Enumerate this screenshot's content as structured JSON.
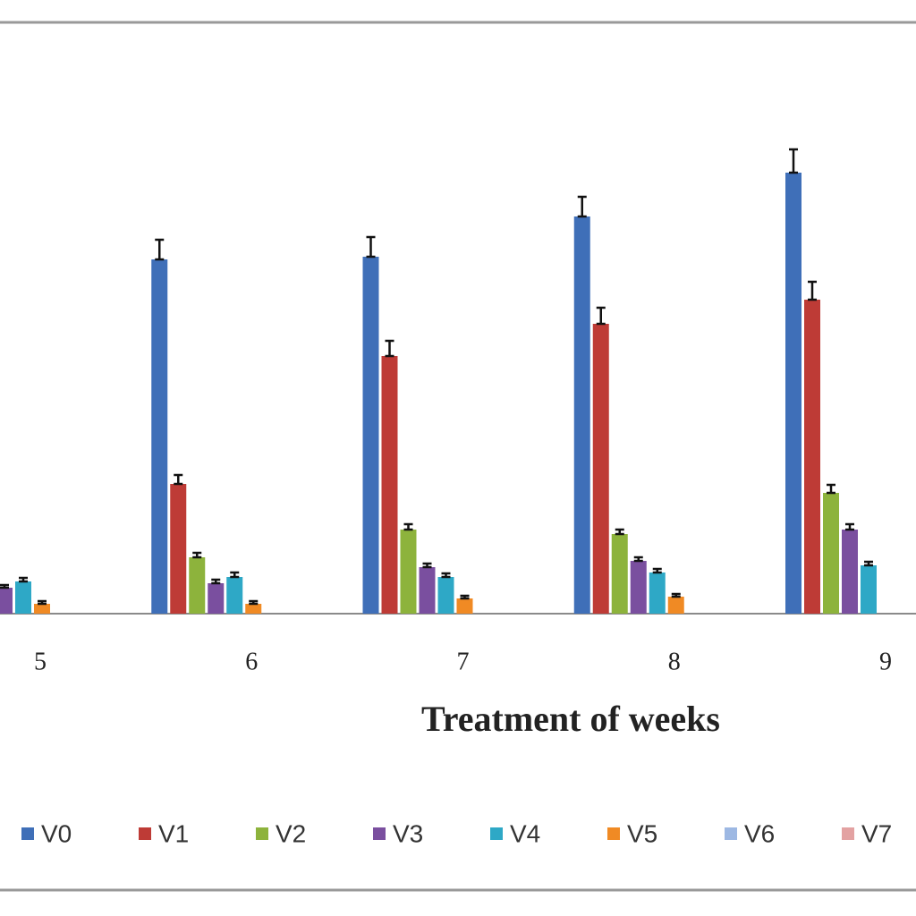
{
  "chart_data": {
    "type": "bar",
    "x_label": "Treatment of weeks",
    "categories": [
      "5",
      "6",
      "7",
      "8",
      "9"
    ],
    "ylim": [
      0,
      660
    ],
    "legend": "bottom",
    "series": [
      {
        "name": "V0",
        "color": "#3f6fb8",
        "values": [
          null,
          396,
          399,
          444,
          493
        ],
        "errors": [
          null,
          22,
          22,
          22,
          26
        ]
      },
      {
        "name": "V1",
        "color": "#be3b36",
        "values": [
          null,
          145,
          288,
          324,
          351
        ],
        "errors": [
          null,
          10,
          17,
          18,
          20
        ]
      },
      {
        "name": "V2",
        "color": "#8db33c",
        "values": [
          null,
          63,
          94,
          89,
          135
        ],
        "errors": [
          null,
          5,
          6,
          5,
          9
        ]
      },
      {
        "name": "V3",
        "color": "#7a4f9f",
        "values": [
          29,
          34,
          52,
          59,
          94
        ],
        "errors": [
          3,
          4,
          4,
          4,
          6
        ]
      },
      {
        "name": "V4",
        "color": "#2ea8c6",
        "values": [
          36,
          41,
          41,
          46,
          54
        ],
        "errors": [
          4,
          5,
          4,
          4,
          4
        ]
      },
      {
        "name": "V5",
        "color": "#f08a24",
        "values": [
          11,
          11,
          17,
          19,
          null
        ],
        "errors": [
          3,
          3,
          3,
          3,
          null
        ]
      },
      {
        "name": "V6",
        "color": "#9db8e3",
        "values": [
          null,
          null,
          null,
          null,
          null
        ],
        "errors": [
          null,
          null,
          null,
          null,
          null
        ]
      },
      {
        "name": "V7",
        "color": "#e3a2a2",
        "values": [
          null,
          null,
          null,
          null,
          null
        ],
        "errors": [
          null,
          null,
          null,
          null,
          null
        ]
      }
    ]
  }
}
